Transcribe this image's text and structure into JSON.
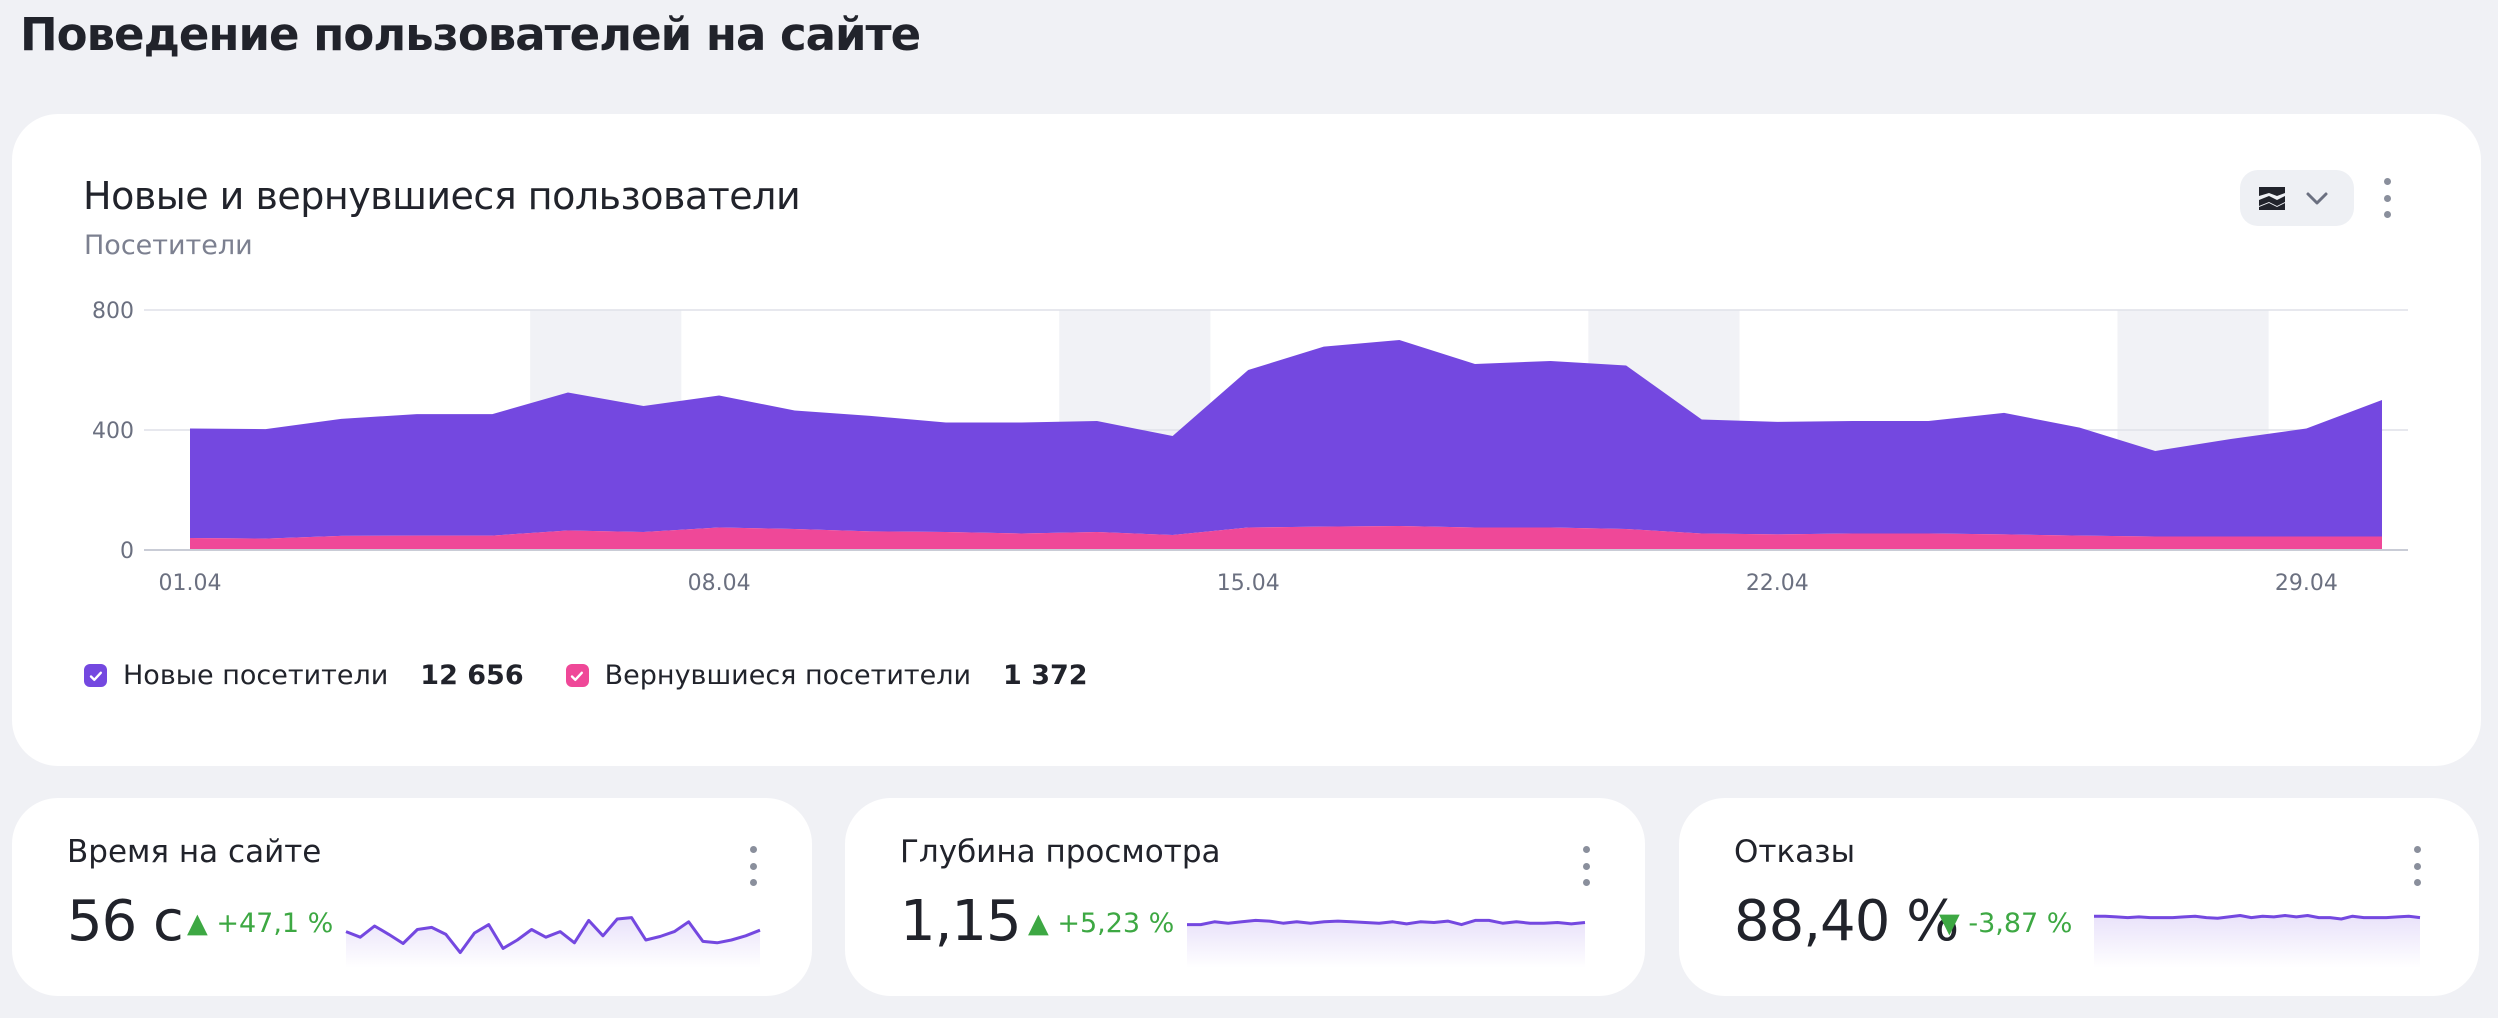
{
  "page_title": "Поведение пользователей на сайте",
  "colors": {
    "new_visitors": "#7448e0",
    "returning_visitors": "#ef4898",
    "positive": "#3da843",
    "spark": "#7448e0"
  },
  "main_card": {
    "title": "Новые и вернувшиеся пользователи",
    "subtitle": "Посетители",
    "chart_type_icon": "stacked-area-icon",
    "dropdown_icon": "chevron-down-icon",
    "more_icon": "more-vertical-icon"
  },
  "legend": [
    {
      "label": "Новые посетители",
      "value": "12 656",
      "icon": "checkbox-checked-icon"
    },
    {
      "label": "Вернувшиеся посетители",
      "value": "1 372",
      "icon": "checkbox-checked-icon"
    }
  ],
  "chart_data": {
    "type": "area",
    "stacked": true,
    "x": [
      "01.04",
      "02.04",
      "03.04",
      "04.04",
      "05.04",
      "06.04",
      "07.04",
      "08.04",
      "09.04",
      "10.04",
      "11.04",
      "12.04",
      "13.04",
      "14.04",
      "15.04",
      "16.04",
      "17.04",
      "18.04",
      "19.04",
      "20.04",
      "21.04",
      "22.04",
      "23.04",
      "24.04",
      "25.04",
      "26.04",
      "27.04",
      "28.04",
      "29.04",
      "30.04"
    ],
    "x_ticks": [
      "01.04",
      "08.04",
      "15.04",
      "22.04",
      "29.04"
    ],
    "y_ticks": [
      "800",
      "400",
      "0"
    ],
    "ylim": [
      0,
      800
    ],
    "grid": true,
    "weekend_shading": [
      [
        "06.04",
        "07.04"
      ],
      [
        "13.04",
        "14.04"
      ],
      [
        "20.04",
        "21.04"
      ],
      [
        "27.04",
        "28.04"
      ]
    ],
    "series": [
      {
        "name": "Новые посетители",
        "values": [
          365,
          365,
          390,
          405,
          405,
          460,
          420,
          440,
          395,
          385,
          365,
          370,
          370,
          330,
          525,
          600,
          620,
          545,
          555,
          545,
          380,
          375,
          375,
          375,
          405,
          360,
          285,
          325,
          360,
          455
        ]
      },
      {
        "name": "Вернувшиеся посетители",
        "values": [
          40,
          38,
          47,
          48,
          48,
          65,
          60,
          75,
          70,
          62,
          60,
          55,
          60,
          50,
          75,
          78,
          80,
          75,
          75,
          70,
          55,
          52,
          55,
          55,
          52,
          48,
          45,
          45,
          45,
          45
        ]
      }
    ]
  },
  "kpis": [
    {
      "title": "Время на сайте",
      "value": "56 с",
      "delta": "▲ +47,1 %",
      "more_icon": "more-vertical-icon",
      "sparkline": [
        0.52,
        0.44,
        0.6,
        0.48,
        0.35,
        0.55,
        0.58,
        0.48,
        0.22,
        0.5,
        0.62,
        0.28,
        0.4,
        0.55,
        0.44,
        0.52,
        0.36,
        0.68,
        0.46,
        0.7,
        0.72,
        0.4,
        0.45,
        0.52,
        0.66,
        0.38,
        0.36,
        0.4,
        0.46,
        0.54
      ]
    },
    {
      "title": "Глубина просмотра",
      "value": "1,15",
      "delta": "▲ +5,23 %",
      "more_icon": "more-vertical-icon",
      "sparkline": [
        0.62,
        0.62,
        0.66,
        0.64,
        0.66,
        0.68,
        0.67,
        0.64,
        0.66,
        0.64,
        0.66,
        0.67,
        0.66,
        0.65,
        0.64,
        0.66,
        0.63,
        0.66,
        0.65,
        0.67,
        0.62,
        0.68,
        0.68,
        0.64,
        0.66,
        0.64,
        0.64,
        0.65,
        0.63,
        0.65
      ]
    },
    {
      "title": "Отказы",
      "value": "88,40 %",
      "delta": "▼ -3,87 %",
      "more_icon": "more-vertical-icon",
      "sparkline": [
        0.74,
        0.74,
        0.73,
        0.72,
        0.73,
        0.72,
        0.72,
        0.72,
        0.73,
        0.74,
        0.72,
        0.71,
        0.73,
        0.75,
        0.72,
        0.74,
        0.73,
        0.75,
        0.73,
        0.75,
        0.72,
        0.72,
        0.7,
        0.74,
        0.72,
        0.72,
        0.72,
        0.73,
        0.74,
        0.72
      ]
    }
  ]
}
